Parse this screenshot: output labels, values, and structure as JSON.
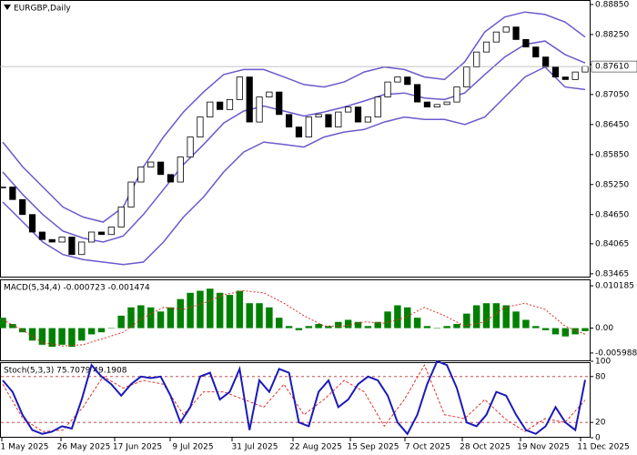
{
  "chart_data": [
    {
      "type": "candlestick",
      "title": "EURGBP,Daily",
      "close": [
        0.852,
        0.8495,
        0.8465,
        0.843,
        0.8415,
        0.841,
        0.842,
        0.8385,
        0.841,
        0.843,
        0.8425,
        0.844,
        0.848,
        0.853,
        0.856,
        0.857,
        0.8545,
        0.853,
        0.858,
        0.862,
        0.866,
        0.869,
        0.8675,
        0.8695,
        0.874,
        0.865,
        0.87,
        0.871,
        0.8665,
        0.864,
        0.862,
        0.866,
        0.8665,
        0.864,
        0.867,
        0.868,
        0.865,
        0.866,
        0.87,
        0.873,
        0.874,
        0.8725,
        0.869,
        0.868,
        0.8685,
        0.869,
        0.872,
        0.876,
        0.879,
        0.881,
        0.883,
        0.884,
        0.8815,
        0.88,
        0.878,
        0.876,
        0.874,
        0.8735,
        0.875,
        0.8761
      ],
      "bull_color": "#ffffff",
      "bear_color": "#000000",
      "series": [
        {
          "name": "Upper",
          "color": "#6a5acd",
          "values": [
            0.861,
            0.856,
            0.852,
            0.848,
            0.846,
            0.845,
            0.848,
            0.856,
            0.862,
            0.867,
            0.871,
            0.8745,
            0.8755,
            0.8755,
            0.874,
            0.8725,
            0.872,
            0.873,
            0.875,
            0.876,
            0.8755,
            0.874,
            0.8735,
            0.877,
            0.883,
            0.886,
            0.887,
            0.8865,
            0.885,
            0.882
          ]
        },
        {
          "name": "Middle",
          "color": "#6a5acd",
          "values": [
            0.855,
            0.8505,
            0.8465,
            0.8432,
            0.8418,
            0.841,
            0.8422,
            0.8465,
            0.8515,
            0.8565,
            0.8605,
            0.8648,
            0.8672,
            0.8682,
            0.8672,
            0.8662,
            0.867,
            0.868,
            0.8692,
            0.8705,
            0.8708,
            0.8698,
            0.8695,
            0.8708,
            0.8745,
            0.878,
            0.8805,
            0.8812,
            0.8785,
            0.8768
          ]
        },
        {
          "name": "Lower",
          "color": "#6a5acd",
          "values": [
            0.849,
            0.845,
            0.841,
            0.8385,
            0.8375,
            0.837,
            0.8365,
            0.837,
            0.841,
            0.846,
            0.85,
            0.855,
            0.859,
            0.861,
            0.8605,
            0.86,
            0.862,
            0.863,
            0.8635,
            0.865,
            0.866,
            0.8655,
            0.8655,
            0.8645,
            0.866,
            0.87,
            0.874,
            0.876,
            0.872,
            0.8715
          ]
        }
      ],
      "last_price": {
        "value": 0.8761,
        "label": "0.87610"
      },
      "ylim": [
        0.8339,
        0.8894
      ],
      "yticks": [
        {
          "value": 0.8885,
          "label": "0.88850"
        },
        {
          "value": 0.8825,
          "label": "0.88250"
        },
        {
          "value": 0.8765,
          "label": "0.87650"
        },
        {
          "value": 0.8705,
          "label": "0.87050"
        },
        {
          "value": 0.8645,
          "label": "0.86450"
        },
        {
          "value": 0.8585,
          "label": "0.85850"
        },
        {
          "value": 0.8525,
          "label": "0.85250"
        },
        {
          "value": 0.8465,
          "label": "0.84650"
        },
        {
          "value": 0.84065,
          "label": "0.84065"
        },
        {
          "value": 0.83465,
          "label": "0.83465"
        }
      ]
    },
    {
      "type": "macd",
      "title": "MACD(5,34,4) -0.000723 -0.001474",
      "values": [
        0.0025,
        0.001,
        -0.001,
        -0.003,
        -0.004,
        -0.0045,
        -0.004,
        -0.0045,
        -0.003,
        -0.0015,
        -0.001,
        0.0,
        0.003,
        0.005,
        0.0055,
        0.005,
        0.004,
        0.005,
        0.007,
        0.0085,
        0.009,
        0.0095,
        0.0085,
        0.008,
        0.009,
        0.006,
        0.006,
        0.005,
        0.0025,
        0.0005,
        -0.0005,
        0.0005,
        0.001,
        0.0005,
        0.0015,
        0.002,
        0.0015,
        0.0005,
        0.0015,
        0.004,
        0.0055,
        0.005,
        0.0025,
        0.0005,
        0.0,
        0.0005,
        0.001,
        0.0035,
        0.0055,
        0.006,
        0.006,
        0.0055,
        0.004,
        0.002,
        0.0005,
        -0.0005,
        -0.0015,
        -0.002,
        -0.0015,
        -0.000723
      ],
      "color": "#008000",
      "signal": [
        0.002,
        -0.0005,
        -0.0035,
        -0.0043,
        -0.004,
        -0.0025,
        -0.001,
        0.0025,
        0.005,
        0.0045,
        0.006,
        0.008,
        0.009,
        0.0085,
        0.006,
        0.003,
        0.0005,
        0.0005,
        0.0015,
        0.0012,
        0.0025,
        0.005,
        0.003,
        0.0005,
        0.0015,
        0.005,
        0.006,
        0.0045,
        0.0005,
        -0.001474
      ],
      "signal_color": "#e0302a",
      "ylim": [
        -0.00798,
        0.01174
      ],
      "yticks": [
        0.010185,
        {
          "value": 0,
          "label": "0.00"
        },
        -0.005988
      ]
    },
    {
      "type": "stochastic",
      "title": "Stoch(5,3,3) 75.7079 49.1908",
      "values": [
        75,
        60,
        30,
        10,
        5,
        8,
        15,
        12,
        50,
        95,
        80,
        70,
        55,
        70,
        80,
        78,
        80,
        55,
        20,
        40,
        80,
        85,
        50,
        60,
        90,
        10,
        75,
        60,
        90,
        85,
        20,
        15,
        60,
        75,
        40,
        50,
        70,
        80,
        75,
        55,
        20,
        5,
        30,
        70,
        100,
        95,
        65,
        20,
        15,
        30,
        60,
        55,
        30,
        10,
        5,
        15,
        40,
        20,
        10,
        75.7079
      ],
      "color": "#1a1ab8",
      "signal": [
        70,
        25,
        8,
        10,
        40,
        80,
        65,
        75,
        70,
        30,
        60,
        60,
        50,
        40,
        70,
        30,
        50,
        75,
        60,
        15,
        50,
        95,
        30,
        25,
        50,
        25,
        8,
        25,
        20,
        49.1908
      ],
      "signal_color": "#e0302a",
      "levels": [
        20,
        80
      ],
      "ylim": [
        0,
        100
      ],
      "yticks": [
        0,
        20,
        80,
        100
      ],
      "x_labels": [
        "1 May 2025",
        "26 May 2025",
        "17 Jun 2025",
        "9 Jul 2025",
        "31 Jul 2025",
        "22 Aug 2025",
        "15 Sep 2025",
        "7 Oct 2025",
        "28 Oct 2025",
        "19 Nov 2025",
        "11 Dec 2025"
      ]
    }
  ]
}
